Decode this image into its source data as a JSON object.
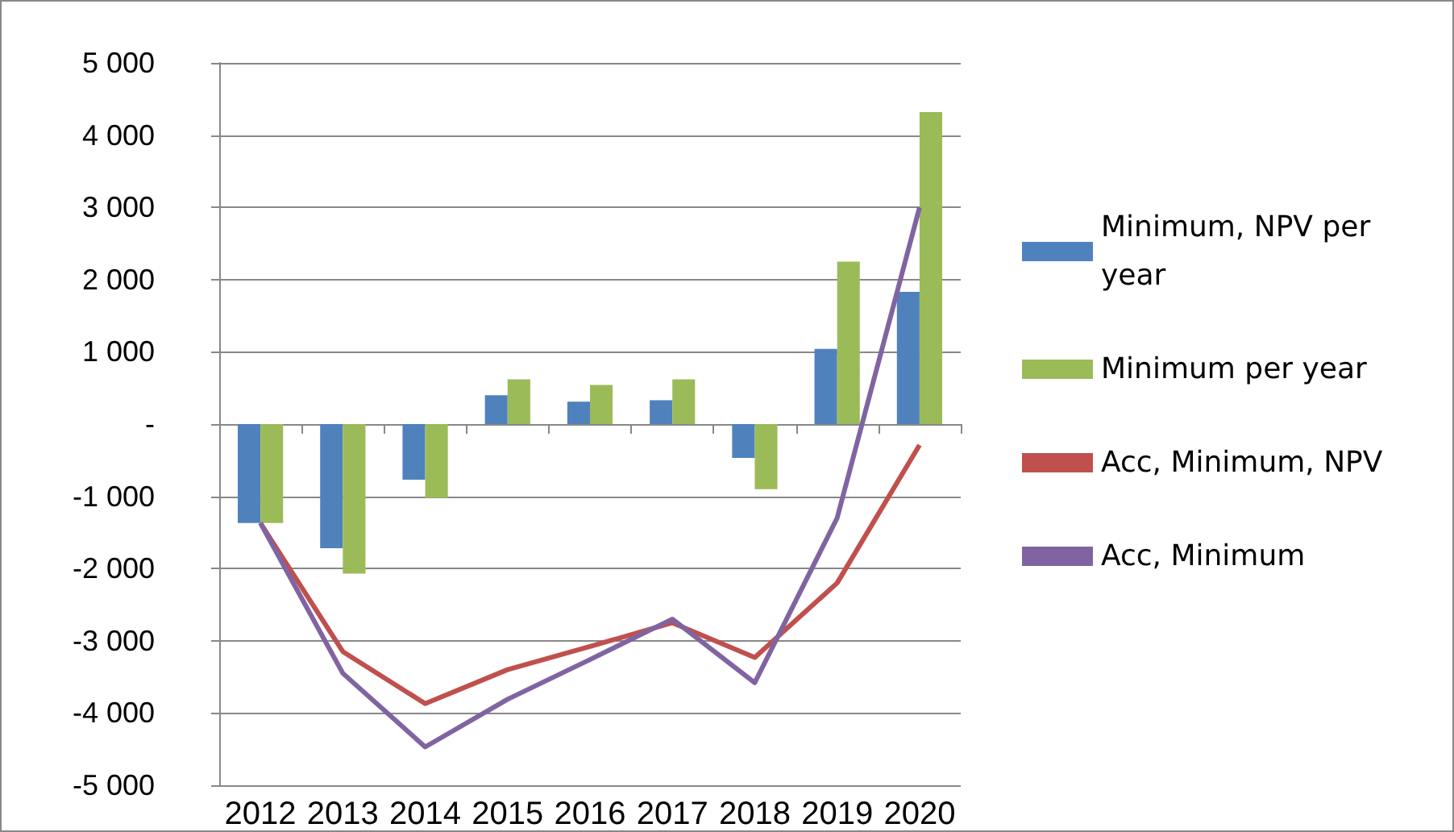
{
  "chart_data": {
    "type": "bar",
    "categories": [
      "2012",
      "2013",
      "2014",
      "2015",
      "2016",
      "2017",
      "2018",
      "2019",
      "2020"
    ],
    "series": [
      {
        "name": "Minimum, NPV per year",
        "color": "#4f81bd",
        "values": [
          -1370,
          -1720,
          -770,
          400,
          310,
          330,
          -470,
          1040,
          1830
        ]
      },
      {
        "name": "Minimum per year",
        "color": "#9bbb59",
        "values": [
          -1370,
          -2070,
          -1020,
          620,
          540,
          620,
          -900,
          2250,
          4320
        ]
      },
      {
        "name": "Acc, Minimum, NPV",
        "type": "line",
        "color": "#c0504d",
        "values": [
          -1370,
          -3150,
          -3870,
          -3400,
          -3080,
          -2750,
          -3230,
          -2200,
          -290
        ]
      },
      {
        "name": "Acc, Minimum",
        "type": "line",
        "color": "#8064a2",
        "values": [
          -1370,
          -3450,
          -4470,
          -3810,
          -3260,
          -2700,
          -3580,
          -1300,
          3000
        ]
      }
    ],
    "ylim": [
      -5000,
      5000
    ],
    "yticks": [
      {
        "value": -5000,
        "label": "-5 000"
      },
      {
        "value": -4000,
        "label": "-4 000"
      },
      {
        "value": -3000,
        "label": "-3 000"
      },
      {
        "value": -2000,
        "label": "-2 000"
      },
      {
        "value": -1000,
        "label": "-1 000"
      },
      {
        "value": 0,
        "label": "-"
      },
      {
        "value": 1000,
        "label": "1 000"
      },
      {
        "value": 2000,
        "label": "2 000"
      },
      {
        "value": 3000,
        "label": "3 000"
      },
      {
        "value": 4000,
        "label": "4 000"
      },
      {
        "value": 5000,
        "label": "5 000"
      }
    ],
    "grid": "y",
    "legend": "right",
    "marker": "none"
  }
}
